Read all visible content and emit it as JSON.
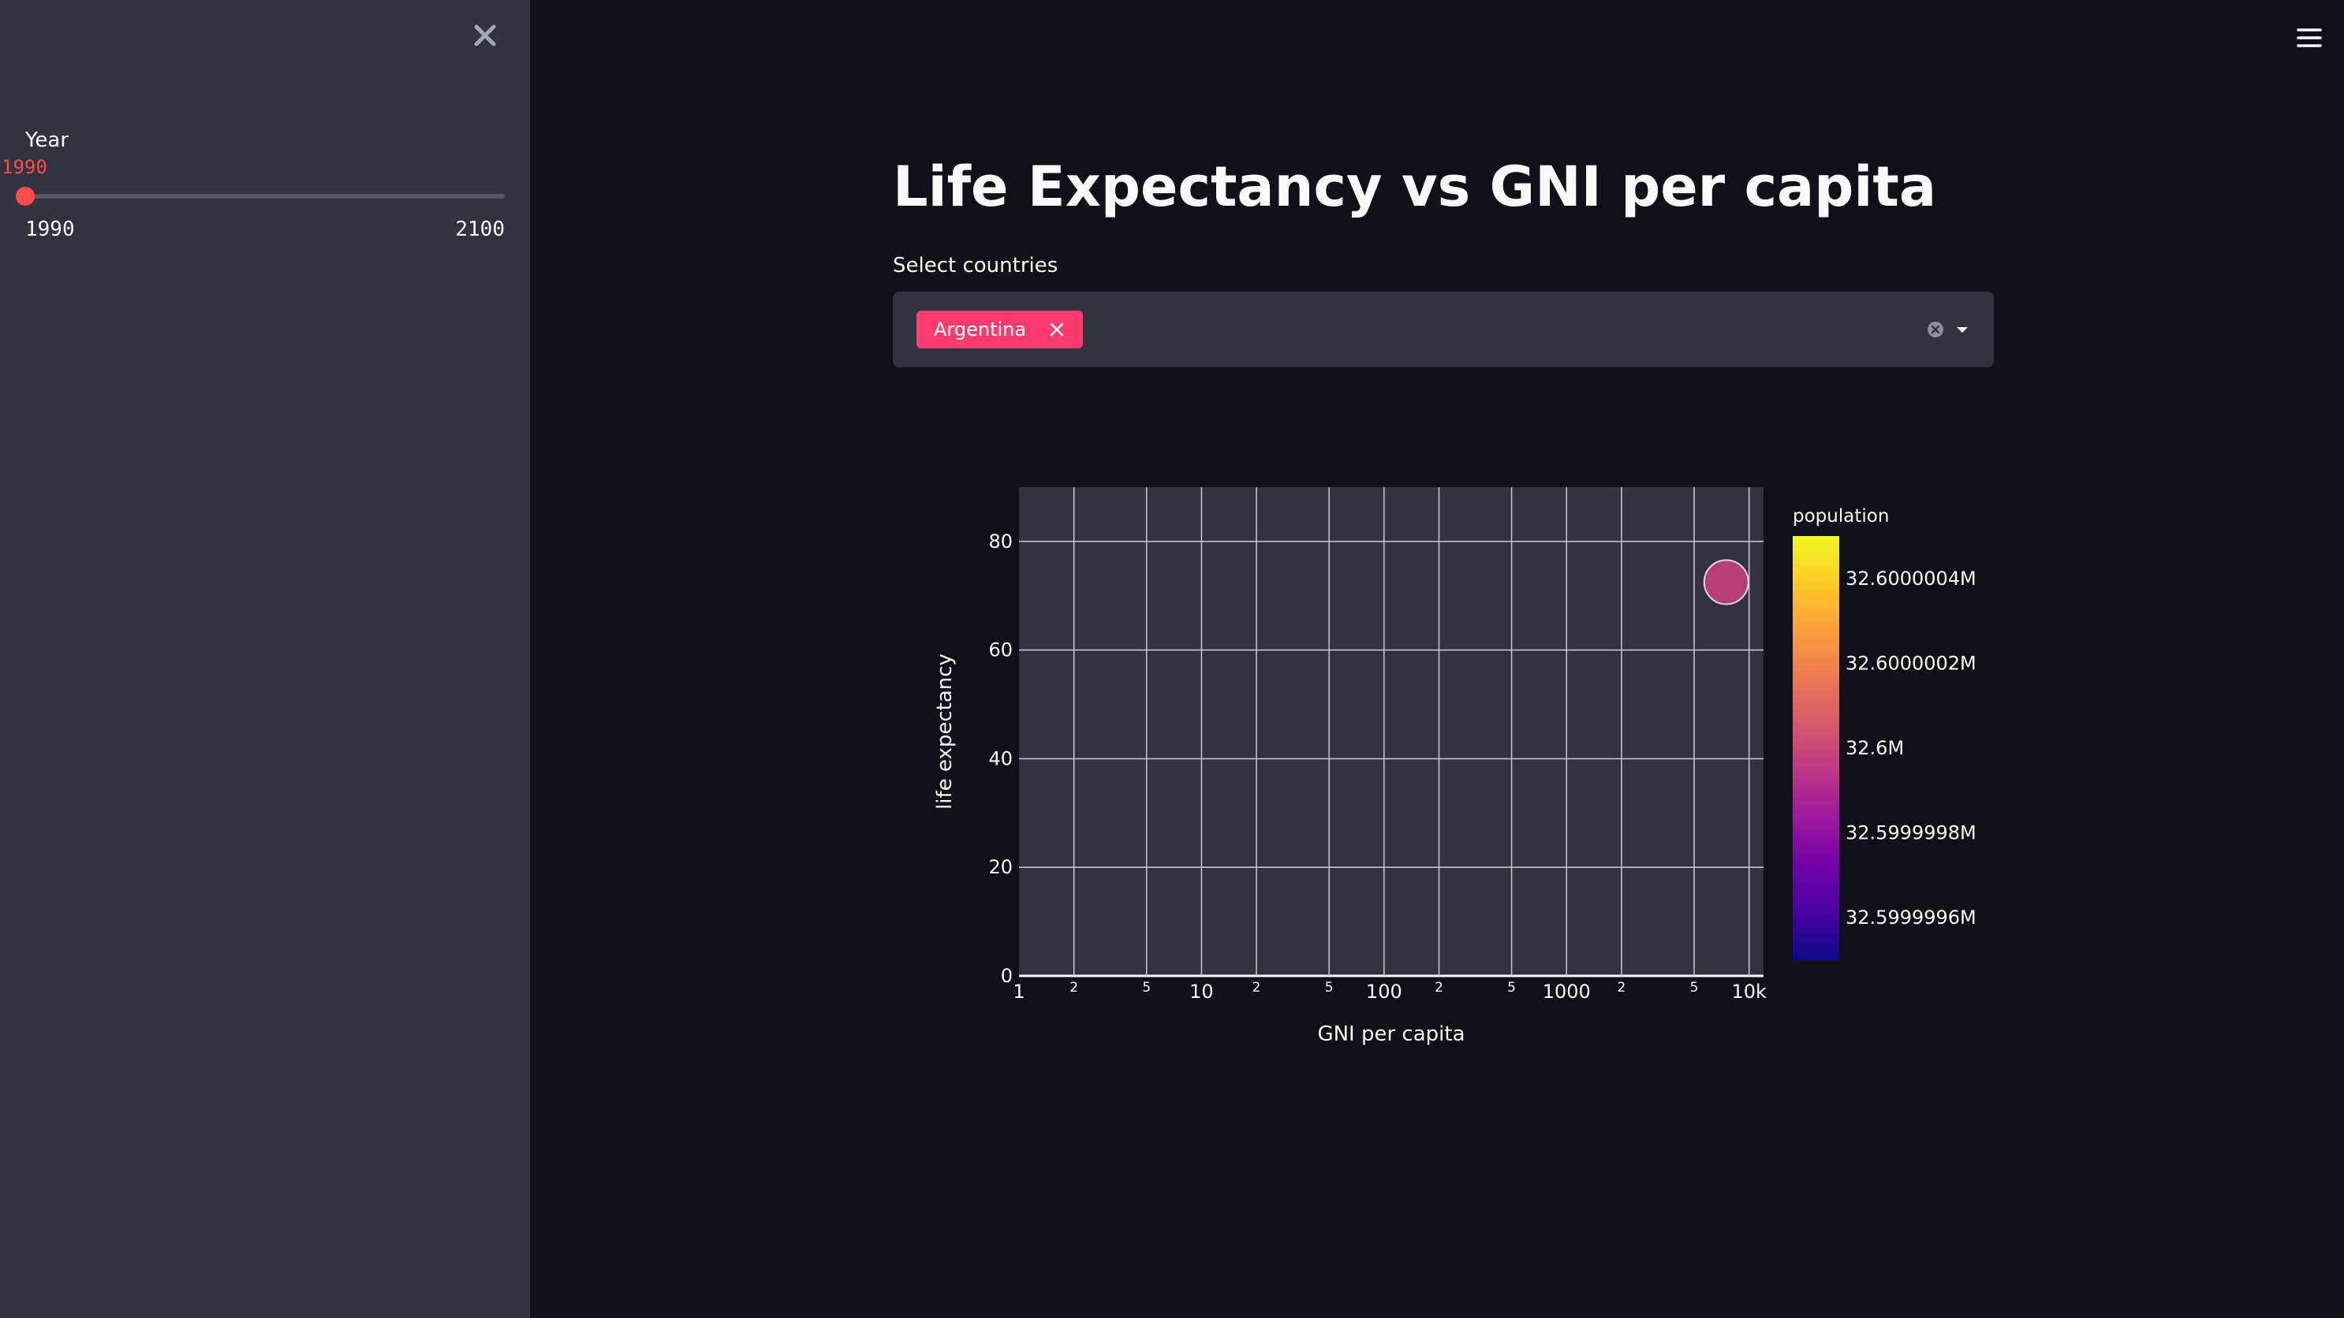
{
  "sidebar": {
    "slider": {
      "label": "Year",
      "value": "1990",
      "min": "1990",
      "max": "2100",
      "fraction": 0
    }
  },
  "main": {
    "title": "Life Expectancy vs GNI per capita",
    "select": {
      "label": "Select countries",
      "selected": [
        "Argentina"
      ]
    }
  },
  "icons": {
    "close": "close-icon",
    "menu": "hamburger-menu-icon",
    "clear": "clear-circle-icon",
    "dropdown": "chevron-down-icon",
    "tag_remove": "x-icon"
  },
  "colors": {
    "accent": "#ff4b4b",
    "tag": "#ff3a6e",
    "background": "#0e1117",
    "sidebar": "#31333f",
    "plot_bg": "#31333f",
    "point": "#c3407a"
  },
  "chart_data": {
    "type": "scatter",
    "title": "",
    "xlabel": "GNI per capita",
    "ylabel": "life expectancy",
    "xscale": "log",
    "xlim": [
      1,
      12000
    ],
    "ylim": [
      0,
      90
    ],
    "grid": true,
    "x_major_ticks": [
      {
        "value": 1,
        "label": "1"
      },
      {
        "value": 10,
        "label": "10"
      },
      {
        "value": 100,
        "label": "100"
      },
      {
        "value": 1000,
        "label": "1000"
      },
      {
        "value": 10000,
        "label": "10k"
      }
    ],
    "x_minor_ticks": [
      {
        "value": 2,
        "label": "2"
      },
      {
        "value": 5,
        "label": "5"
      },
      {
        "value": 20,
        "label": "2"
      },
      {
        "value": 50,
        "label": "5"
      },
      {
        "value": 200,
        "label": "2"
      },
      {
        "value": 500,
        "label": "5"
      },
      {
        "value": 2000,
        "label": "2"
      },
      {
        "value": 5000,
        "label": "5"
      }
    ],
    "y_ticks": [
      {
        "value": 0,
        "label": "0"
      },
      {
        "value": 20,
        "label": "20"
      },
      {
        "value": 40,
        "label": "40"
      },
      {
        "value": 60,
        "label": "60"
      },
      {
        "value": 80,
        "label": "80"
      }
    ],
    "points": [
      {
        "x": 7500,
        "y": 72.5,
        "population": 32.6,
        "color": "#c3407a"
      }
    ],
    "colorbar": {
      "title": "population",
      "min": 32.5999995,
      "max": 32.6000005,
      "ticks": [
        {
          "value": 32.6000004,
          "label": "32.6000004M"
        },
        {
          "value": 32.6000002,
          "label": "32.6000002M"
        },
        {
          "value": 32.6,
          "label": "32.6M"
        },
        {
          "value": 32.5999998,
          "label": "32.5999998M"
        },
        {
          "value": 32.5999996,
          "label": "32.5999996M"
        }
      ],
      "colorscale": [
        "#0d0887",
        "#46039f",
        "#7201a8",
        "#9c179e",
        "#bd3786",
        "#d8576b",
        "#ed7953",
        "#fb9f3a",
        "#fdca26",
        "#f0f921"
      ]
    }
  }
}
